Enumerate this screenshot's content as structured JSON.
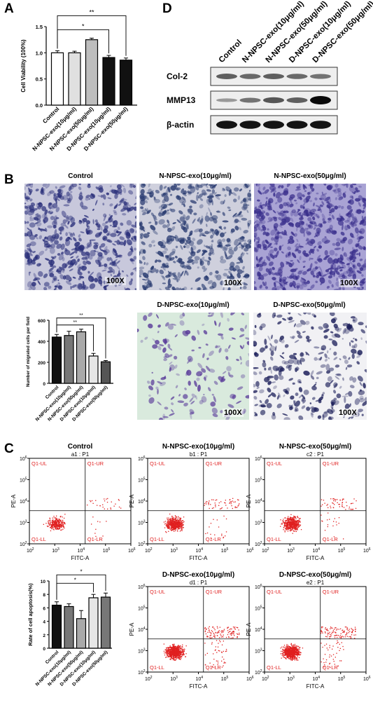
{
  "panels": {
    "A": "A",
    "B": "B",
    "C": "C",
    "D": "D"
  },
  "panelA": {
    "chart_data": {
      "type": "bar",
      "categories": [
        "Control",
        "N-NPSC-exo(10μg/ml)",
        "N-NPSC-exo(50μg/ml)",
        "D-NPSC-exo(10μg/ml)",
        "D-NPSC-exo(50μg/ml)"
      ],
      "values": [
        1.0,
        1.0,
        1.25,
        0.91,
        0.86
      ],
      "errors": [
        0.04,
        0.03,
        0.03,
        0.04,
        0.04
      ],
      "ylabel": "Cell Viability (100%)",
      "yticks": [
        "0.0",
        "0.5",
        "1.0",
        "1.5"
      ],
      "ylim": [
        0,
        1.5
      ],
      "significance": [
        {
          "from": 0,
          "to": 3,
          "label": "*"
        },
        {
          "from": 0,
          "to": 4,
          "label": "**"
        }
      ]
    },
    "colors": [
      "#ffffff",
      "#e0e0e0",
      "#bdbdbd",
      "#111111",
      "#111111"
    ]
  },
  "panelD": {
    "columns": [
      "Control",
      "N-NPSC-exo(10μg/ml)",
      "N-NPSC-exo(50μg/ml)",
      "D-NPSC-exo(10μg/ml)",
      "D-NPSC-exo(50μg/ml)"
    ],
    "rows": [
      {
        "label": "Col-2",
        "intensity": [
          0.55,
          0.5,
          0.55,
          0.5,
          0.45
        ]
      },
      {
        "label": "MMP13",
        "intensity": [
          0.25,
          0.45,
          0.6,
          0.55,
          1.0
        ]
      },
      {
        "label": "β-actin",
        "intensity": [
          0.95,
          0.95,
          0.95,
          0.95,
          0.95
        ]
      }
    ]
  },
  "panelB": {
    "images": [
      {
        "title": "Control",
        "mag": "100X"
      },
      {
        "title": "N-NPSC-exo(10μg/ml)",
        "mag": "100X"
      },
      {
        "title": "N-NPSC-exo(50μg/ml)",
        "mag": "100X"
      },
      {
        "title": "D-NPSC-exo(10μg/ml)",
        "mag": "100X"
      },
      {
        "title": "D-NPSC-exo(50μg/ml)",
        "mag": "100X"
      }
    ],
    "chart_data": {
      "type": "bar",
      "categories": [
        "Control",
        "N-NPSC-exo(10μg/ml)",
        "N-NPSC-exo(50μg/ml)",
        "D-NPSC-exo(10μg/ml)",
        "D-NPSC-exo(50μg/ml)"
      ],
      "values": [
        440,
        455,
        490,
        260,
        205
      ],
      "errors": [
        25,
        40,
        25,
        25,
        12
      ],
      "ylabel": "Number of migrated cells per field",
      "yticks": [
        "0",
        "200",
        "400",
        "600"
      ],
      "ylim": [
        0,
        600
      ],
      "significance": [
        {
          "from": 0,
          "to": 3,
          "label": "**"
        },
        {
          "from": 0,
          "to": 4,
          "label": "**"
        }
      ]
    },
    "colors": [
      "#111111",
      "#777777",
      "#a9a9a9",
      "#e6e6e6",
      "#555555"
    ]
  },
  "panelC": {
    "plots": [
      {
        "title": "Control",
        "subtitle": "a1 : P1",
        "n": 300,
        "ur": 0.09,
        "lr": 0.03
      },
      {
        "title": "N-NPSC-exo(10μg/ml)",
        "subtitle": "b1 : P1",
        "n": 600,
        "ur": 0.09,
        "lr": 0.03
      },
      {
        "title": "N-NPSC-exo(50μg/ml)",
        "subtitle": "c2 : P1",
        "n": 600,
        "ur": 0.09,
        "lr": 0.03
      },
      {
        "title": "D-NPSC-exo(10μg/ml)",
        "subtitle": "d1 : P1",
        "n": 900,
        "ur": 0.12,
        "lr": 0.05
      },
      {
        "title": "D-NPSC-exo(50μg/ml)",
        "subtitle": "e2 : P1",
        "n": 900,
        "ur": 0.12,
        "lr": 0.05
      }
    ],
    "quadrants": [
      "Q1-UL",
      "Q1-UR",
      "Q1-LL",
      "Q1-LR"
    ],
    "xlabel": "FITC-A",
    "ylabel": "PE-A",
    "chart_data": {
      "type": "bar",
      "categories": [
        "Control",
        "N-NPSC-exo(10μg/ml)",
        "N-NPSC-exo(50μg/ml)",
        "D-NPSC-exo(10μg/ml)",
        "D-NPSC-exo(50μg/ml)"
      ],
      "values": [
        6.4,
        6.2,
        4.4,
        7.5,
        7.6
      ],
      "errors": [
        0.5,
        0.4,
        1.2,
        0.5,
        0.6
      ],
      "ylabel": "Rate of cell apoptosis(%)",
      "yticks": [
        "0",
        "2",
        "4",
        "6",
        "8",
        "10"
      ],
      "ylim": [
        0,
        10
      ],
      "significance": [
        {
          "from": 0,
          "to": 3,
          "label": "*"
        },
        {
          "from": 0,
          "to": 4,
          "label": "*"
        }
      ]
    },
    "colors": [
      "#111111",
      "#777777",
      "#a9a9a9",
      "#e6e6e6",
      "#777777"
    ]
  }
}
